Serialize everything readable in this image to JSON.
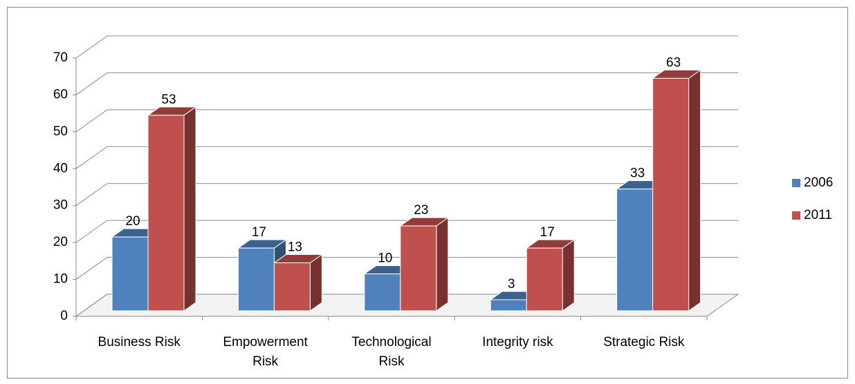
{
  "chart_data": {
    "type": "bar3d",
    "categories": [
      "Business Risk",
      "Empowerment Risk",
      "Technological Risk",
      "Integrity risk",
      "Strategic Risk"
    ],
    "series": [
      {
        "name": "2006",
        "color": "#4f81bd",
        "values": [
          20,
          17,
          10,
          3,
          33
        ]
      },
      {
        "name": "2011",
        "color": "#c0504d",
        "values": [
          53,
          13,
          23,
          17,
          63
        ]
      }
    ],
    "ylim": [
      0,
      70
    ],
    "yticks": [
      0,
      10,
      20,
      30,
      40,
      50,
      60,
      70
    ],
    "grid": true,
    "legend": "right"
  }
}
